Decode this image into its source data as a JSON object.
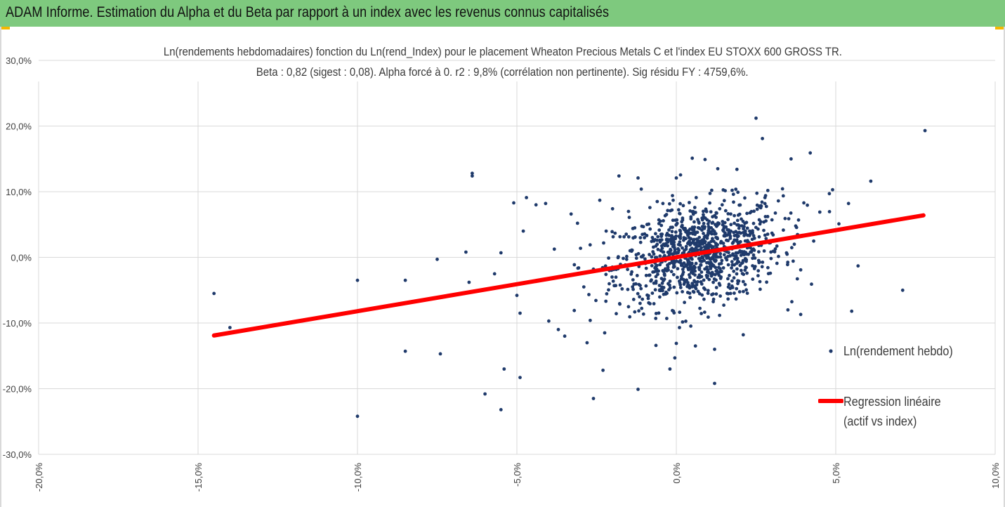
{
  "header": {
    "title": "ADAM Informe. Estimation du Alpha et du Beta par rapport à un index avec les revenus connus capitalisés"
  },
  "colors": {
    "header_bg": "#7ec97e",
    "points": "#1f3a6b",
    "regression": "#ff0000",
    "corner_accent": "#f5b800",
    "grid": "#d9d9d9"
  },
  "chart_data": {
    "type": "scatter",
    "title_line1": "Ln(rendements hebdomadaires) fonction du Ln(rend_Index) pour le placement Wheaton Precious Metals C et l'index EU STOXX 600 GROSS TR.",
    "title_line2": "Beta : 0,82 (sigest : 0,08). Alpha forcé à 0. r2 : 9,8% (corrélation non pertinente). Sig résidu FY : 4759,6%.",
    "xlim": [
      -0.2,
      0.1
    ],
    "ylim": [
      -0.3,
      0.3
    ],
    "x_ticks": [
      -0.2,
      -0.15,
      -0.1,
      -0.05,
      0.0,
      0.05,
      0.1
    ],
    "x_tick_labels": [
      "-20,0%",
      "-15,0%",
      "-10,0%",
      "-5,0%",
      "0,0%",
      "5,0%",
      "10,0%"
    ],
    "y_ticks": [
      0.3,
      0.2,
      0.1,
      0.0,
      -0.1,
      -0.2,
      -0.3
    ],
    "y_tick_labels": [
      "30,0%",
      "20,0%",
      "10,0%",
      "0,0%",
      "-10,0%",
      "-20,0%",
      "-30,0%"
    ],
    "grid": true,
    "legend_position": "right",
    "series": [
      {
        "name": "Ln(rendement hebdo)",
        "kind": "scatter",
        "points": [
          [
            -0.145,
            -0.055
          ],
          [
            -0.14,
            -0.107
          ],
          [
            -0.1,
            -0.035
          ],
          [
            -0.1,
            -0.242
          ],
          [
            -0.085,
            -0.035
          ],
          [
            -0.085,
            -0.143
          ],
          [
            -0.075,
            -0.003
          ],
          [
            -0.074,
            -0.147
          ],
          [
            -0.066,
            0.008
          ],
          [
            -0.065,
            -0.038
          ],
          [
            -0.064,
            0.128
          ],
          [
            -0.064,
            0.124
          ],
          [
            -0.06,
            -0.208
          ],
          [
            -0.057,
            -0.025
          ],
          [
            -0.055,
            0.007
          ],
          [
            -0.055,
            -0.232
          ],
          [
            -0.054,
            -0.17
          ],
          [
            -0.051,
            0.083
          ],
          [
            -0.05,
            -0.058
          ],
          [
            -0.049,
            -0.085
          ],
          [
            -0.049,
            -0.183
          ],
          [
            -0.047,
            0.091
          ],
          [
            -0.048,
            0.04
          ],
          [
            -0.044,
            0.08
          ],
          [
            -0.041,
            0.082
          ],
          [
            -0.04,
            -0.097
          ],
          [
            -0.037,
            -0.11
          ],
          [
            -0.035,
            -0.12
          ],
          [
            -0.033,
            0.066
          ],
          [
            -0.032,
            -0.081
          ],
          [
            -0.031,
            0.052
          ],
          [
            -0.029,
            -0.045
          ],
          [
            -0.028,
            -0.13
          ],
          [
            -0.027,
            -0.096
          ],
          [
            -0.026,
            -0.215
          ],
          [
            -0.024,
            0.087
          ],
          [
            -0.023,
            -0.172
          ],
          [
            -0.022,
            0.04
          ],
          [
            -0.021,
            -0.02
          ],
          [
            -0.02,
            0.074
          ],
          [
            -0.019,
            -0.043
          ],
          [
            -0.018,
            0.124
          ],
          [
            -0.017,
            -0.048
          ],
          [
            -0.015,
            0.07
          ],
          [
            -0.012,
            0.121
          ],
          [
            -0.012,
            -0.201
          ],
          [
            -0.011,
            0.104
          ],
          [
            -0.01,
            0.03
          ],
          [
            -0.008,
            -0.036
          ],
          [
            -0.006,
            0.085
          ],
          [
            -0.005,
            0.055
          ],
          [
            -0.003,
            -0.093
          ],
          [
            -0.002,
            -0.17
          ],
          [
            -0.001,
            0.087
          ],
          [
            0.0,
            0.121
          ],
          [
            0.0,
            -0.131
          ],
          [
            0.001,
            -0.107
          ],
          [
            0.001,
            0.067
          ],
          [
            0.002,
            -0.026
          ],
          [
            0.004,
            0.03
          ],
          [
            0.005,
            0.151
          ],
          [
            0.006,
            -0.135
          ],
          [
            0.007,
            0.054
          ],
          [
            0.009,
            0.149
          ],
          [
            0.01,
            -0.091
          ],
          [
            0.012,
            -0.14
          ],
          [
            0.012,
            -0.192
          ],
          [
            0.013,
            0.135
          ],
          [
            0.015,
            0.047
          ],
          [
            0.017,
            -0.055
          ],
          [
            0.019,
            0.134
          ],
          [
            0.021,
            -0.118
          ],
          [
            0.023,
            0.04
          ],
          [
            0.025,
            0.212
          ],
          [
            0.027,
            0.181
          ],
          [
            0.028,
            0.094
          ],
          [
            0.032,
            0.086
          ],
          [
            0.035,
            -0.08
          ],
          [
            0.036,
            0.15
          ],
          [
            0.037,
            0.02
          ],
          [
            0.039,
            -0.019
          ],
          [
            0.039,
            -0.087
          ],
          [
            0.04,
            0.083
          ],
          [
            0.042,
            0.159
          ],
          [
            0.045,
            0.069
          ],
          [
            0.048,
            0.097
          ],
          [
            0.049,
            0.103
          ],
          [
            0.051,
            0.051
          ],
          [
            0.057,
            -0.013
          ],
          [
            0.054,
            0.082
          ],
          [
            0.055,
            -0.082
          ],
          [
            0.061,
            0.116
          ],
          [
            0.071,
            -0.05
          ],
          [
            0.078,
            0.193
          ],
          [
            -0.004,
            0.008
          ],
          [
            0.003,
            -0.012
          ],
          [
            0.006,
            0.021
          ],
          [
            -0.007,
            -0.022
          ],
          [
            0.011,
            0.017
          ],
          [
            0.014,
            -0.03
          ],
          [
            -0.014,
            0.011
          ],
          [
            0.018,
            0.038
          ],
          [
            -0.026,
            -0.018
          ],
          [
            0.022,
            0.005
          ]
        ]
      },
      {
        "name": "Regression linéaire (actif vs index)",
        "kind": "line",
        "points": [
          [
            -0.145,
            -0.119
          ],
          [
            0.0775,
            0.064
          ]
        ]
      }
    ],
    "legend": {
      "entry1": "Ln(rendement hebdo)",
      "entry2_line1": "Regression linéaire",
      "entry2_line2": "(actif vs index)"
    },
    "cluster_note": "dense cloud of ~1000 weekly observations centered near (0.8%, 0.5%)"
  }
}
